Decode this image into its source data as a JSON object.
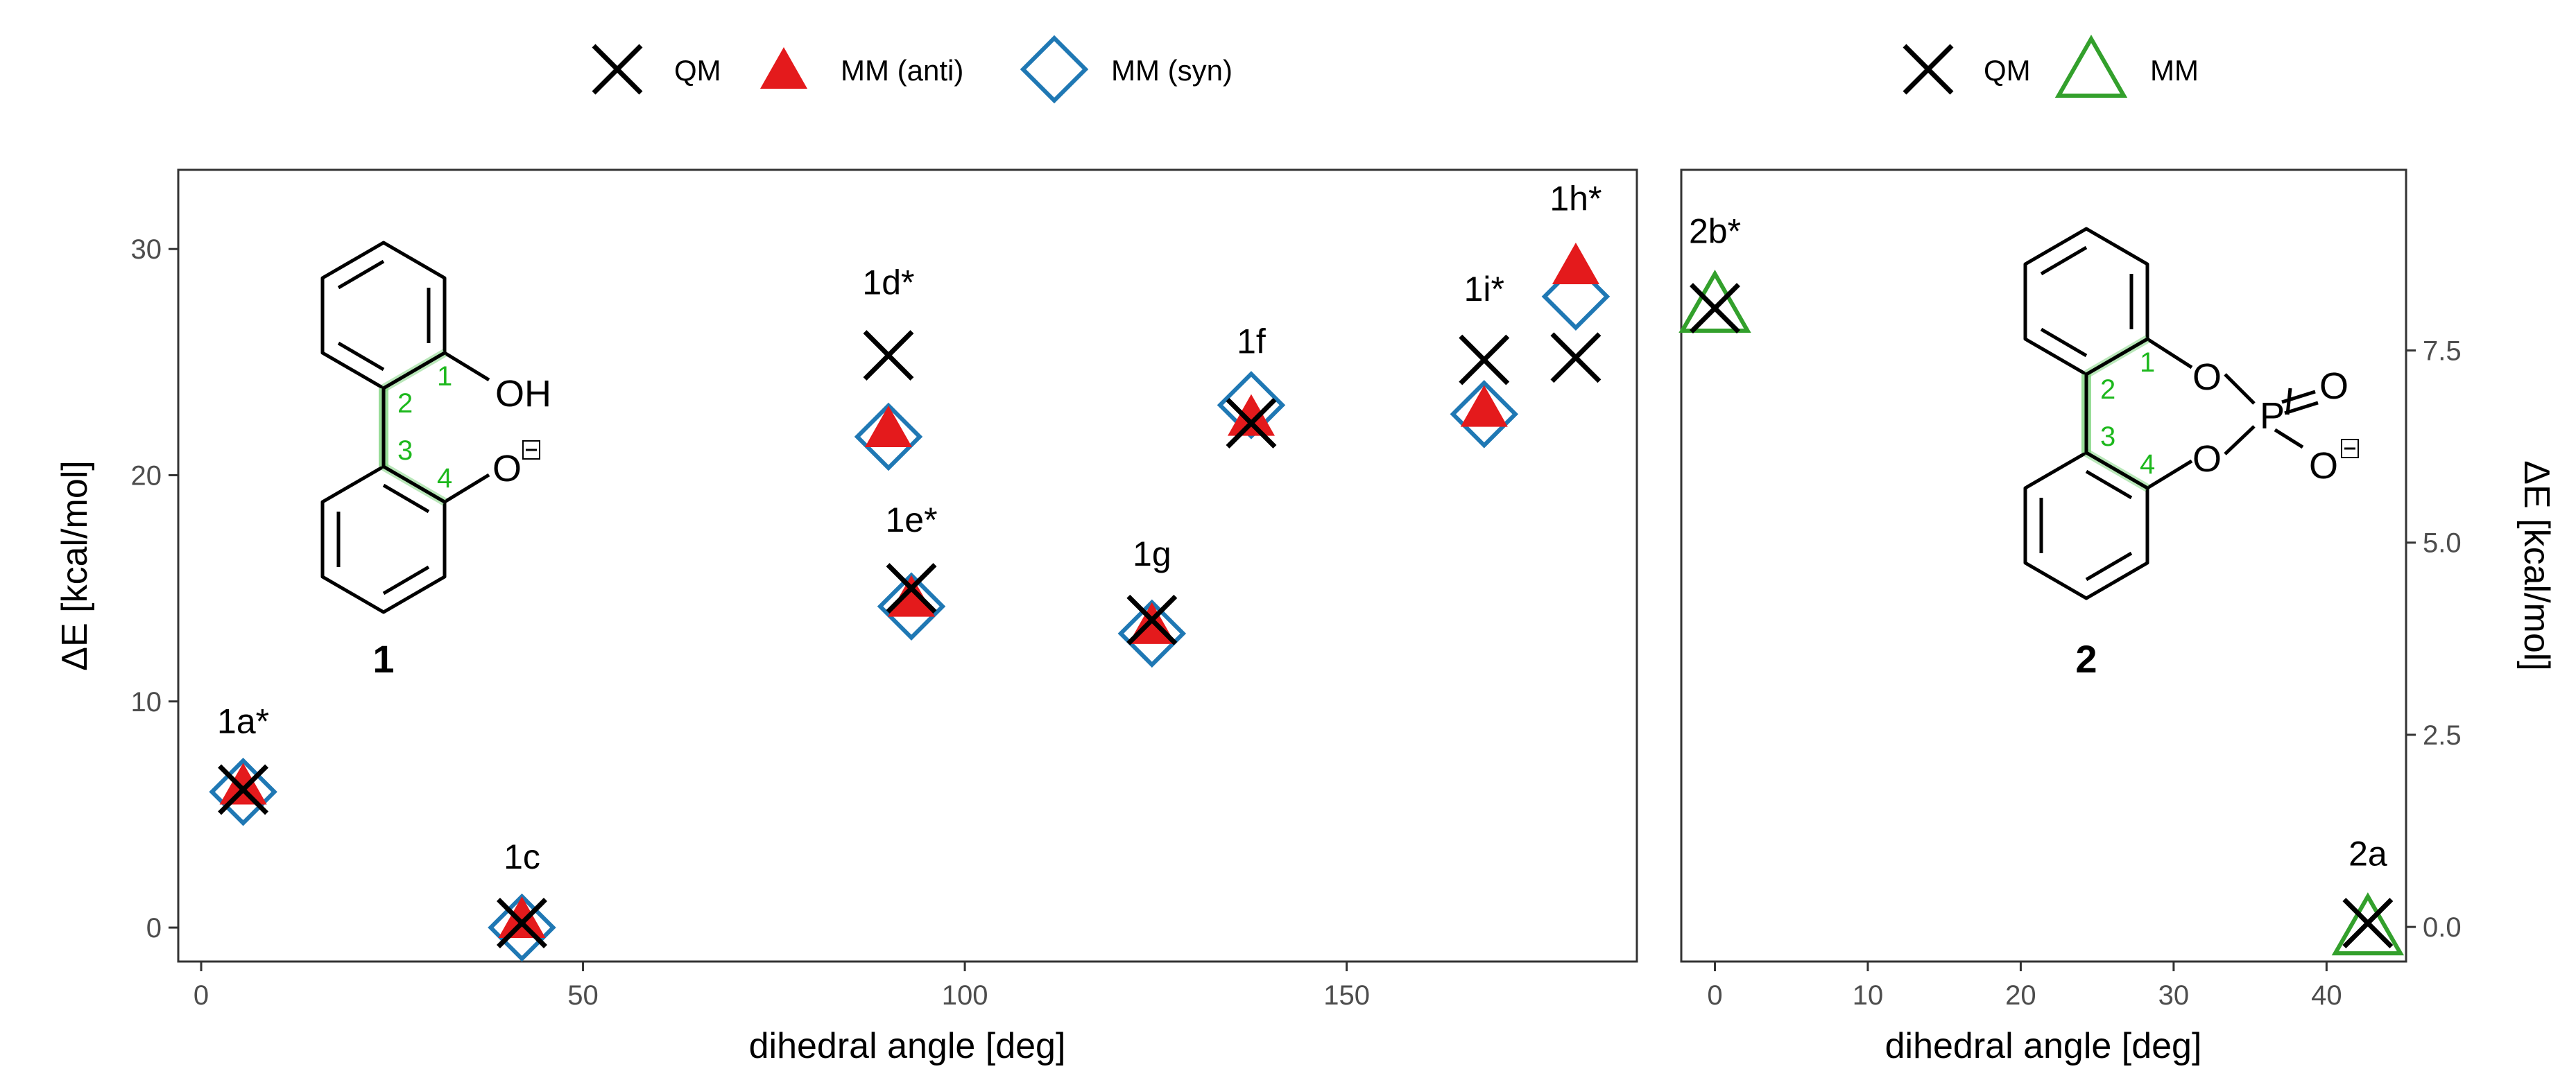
{
  "chart_data": [
    {
      "type": "scatter",
      "panel": "left",
      "xlabel": "dihedral angle [deg]",
      "ylabel": "ΔE [kcal/mol]",
      "xlim": [
        -3,
        188
      ],
      "ylim": [
        -1.5,
        33.5
      ],
      "x_ticks": [
        0,
        50,
        100,
        150
      ],
      "y_ticks": [
        0,
        10,
        20,
        30
      ],
      "grid": false,
      "legend": {
        "placement": "top",
        "entries": [
          {
            "name": "QM",
            "marker": "cross",
            "color": "#000000"
          },
          {
            "name": "MM (anti)",
            "marker": "filled-triangle",
            "color": "#e41a1c"
          },
          {
            "name": "MM (syn)",
            "marker": "open-diamond",
            "color": "#1f78b4"
          }
        ]
      },
      "series": [
        {
          "name": "QM",
          "points": [
            {
              "x": 5.5,
              "y": 6.1
            },
            {
              "x": 42,
              "y": 0.2
            },
            {
              "x": 90,
              "y": 25.3
            },
            {
              "x": 93,
              "y": 15.0
            },
            {
              "x": 124.5,
              "y": 13.6
            },
            {
              "x": 137.5,
              "y": 22.3
            },
            {
              "x": 168,
              "y": 25.1
            },
            {
              "x": 180,
              "y": 25.2
            }
          ]
        },
        {
          "name": "MM (anti)",
          "points": [
            {
              "x": 5.5,
              "y": 6.3
            },
            {
              "x": 42,
              "y": 0.4
            },
            {
              "x": 90,
              "y": 22.1
            },
            {
              "x": 93,
              "y": 14.6
            },
            {
              "x": 124.5,
              "y": 13.4
            },
            {
              "x": 137.5,
              "y": 22.6
            },
            {
              "x": 168,
              "y": 23.0
            },
            {
              "x": 180,
              "y": 29.3
            }
          ]
        },
        {
          "name": "MM (syn)",
          "points": [
            {
              "x": 5.5,
              "y": 6.0
            },
            {
              "x": 42,
              "y": 0.0
            },
            {
              "x": 90,
              "y": 21.7
            },
            {
              "x": 93,
              "y": 14.2
            },
            {
              "x": 124.5,
              "y": 13.0
            },
            {
              "x": 137.5,
              "y": 23.1
            },
            {
              "x": 168,
              "y": 22.7
            },
            {
              "x": 180,
              "y": 27.9
            }
          ]
        }
      ],
      "annotations": [
        {
          "text": "1a*",
          "x": 5.5,
          "y": 8.6
        },
        {
          "text": "1c",
          "x": 42,
          "y": 2.6
        },
        {
          "text": "1d*",
          "x": 90,
          "y": 28.0
        },
        {
          "text": "1e*",
          "x": 93,
          "y": 17.5
        },
        {
          "text": "1g",
          "x": 124.5,
          "y": 16.0
        },
        {
          "text": "1f",
          "x": 137.5,
          "y": 25.4
        },
        {
          "text": "1i*",
          "x": 168,
          "y": 27.7
        },
        {
          "text": "1h*",
          "x": 180,
          "y": 31.7
        }
      ],
      "molecule": {
        "label": "1",
        "substituents": [
          "OH",
          "O"
        ],
        "bond_numbers": [
          "1",
          "2",
          "3",
          "4"
        ]
      }
    },
    {
      "type": "scatter",
      "panel": "right",
      "xlabel": "dihedral angle [deg]",
      "ylabel": "ΔE [kcal/mol]",
      "xlim": [
        -2.2,
        45.2
      ],
      "ylim": [
        -0.45,
        9.85
      ],
      "x_ticks": [
        0,
        10,
        20,
        30,
        40
      ],
      "y_ticks_right": [
        "0.0",
        "2.5",
        "5.0",
        "7.5"
      ],
      "grid": false,
      "legend": {
        "placement": "top",
        "entries": [
          {
            "name": "QM",
            "marker": "cross",
            "color": "#000000"
          },
          {
            "name": "MM",
            "marker": "open-triangle",
            "color": "#33a02c"
          }
        ]
      },
      "series": [
        {
          "name": "QM",
          "points": [
            {
              "x": 0,
              "y": 8.05
            },
            {
              "x": 42.7,
              "y": 0.05
            }
          ]
        },
        {
          "name": "MM",
          "points": [
            {
              "x": 0,
              "y": 8.1
            },
            {
              "x": 42.7,
              "y": 0.0
            }
          ]
        }
      ],
      "annotations": [
        {
          "text": "2b*",
          "x": 0,
          "y": 8.9
        },
        {
          "text": "2a",
          "x": 42.7,
          "y": 0.8
        }
      ],
      "molecule": {
        "label": "2",
        "atoms": [
          "O",
          "O",
          "P",
          "O",
          "O"
        ],
        "bond_numbers": [
          "1",
          "2",
          "3",
          "4"
        ]
      }
    }
  ]
}
